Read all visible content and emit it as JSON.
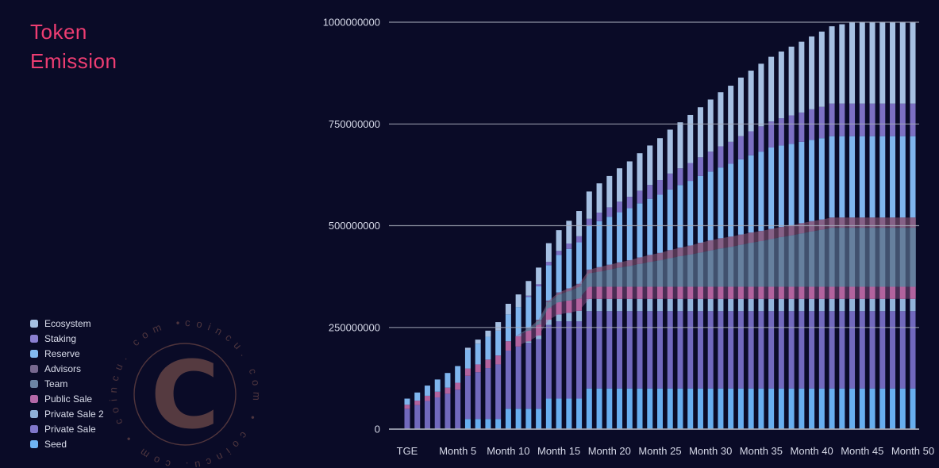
{
  "page": {
    "background_color": "#0a0b27"
  },
  "title": {
    "line1": "Token",
    "line2": "Emission",
    "color": "#ee3d72"
  },
  "watermark": {
    "center_text": "C",
    "ring_text": "coincu. com  •  coincu. com  •  coincu. com  •"
  },
  "legend": {
    "items": [
      {
        "label": "Ecosystem",
        "color": "#a6c0e2"
      },
      {
        "label": "Staking",
        "color": "#8b7fd1"
      },
      {
        "label": "Reserve",
        "color": "#82b9f0"
      },
      {
        "label": "Advisors",
        "color": "#77688f"
      },
      {
        "label": "Team",
        "color": "#6c84a4"
      },
      {
        "label": "Public Sale",
        "color": "#b468a8"
      },
      {
        "label": "Private Sale 2",
        "color": "#8fb0d8"
      },
      {
        "label": "Private Sale",
        "color": "#8177cb"
      },
      {
        "label": "Seed",
        "color": "#6fb3f2"
      }
    ]
  },
  "chart_data": {
    "type": "bar",
    "stacked": true,
    "title": "Token Emission",
    "unit": "tokens, values in millions (1 = 1,000,000 tokens)",
    "total_supply_millions": 1000,
    "x_axis": {
      "num_bars": 51,
      "months": "TGE (month 0) through Month 50, one bar per month",
      "tick_every": 5,
      "tick_labels": [
        "TGE",
        "Month 5",
        "Month 10",
        "Month 15",
        "Month 20",
        "Month 25",
        "Month 30",
        "Month 35",
        "Month 40",
        "Month 45",
        "Month 50"
      ]
    },
    "y_axis": {
      "ylim_millions": [
        0,
        1000
      ],
      "ticks": [
        {
          "label": "0",
          "value_millions": 0
        },
        {
          "label": "250000000",
          "value_millions": 250
        },
        {
          "label": "500000000",
          "value_millions": 500
        },
        {
          "label": "750000000",
          "value_millions": 750
        },
        {
          "label": "1000000000",
          "value_millions": 1000
        }
      ],
      "grid": true,
      "grid_color": "#a6aaba",
      "text_color": "#d6d9e8"
    },
    "series_note": "cumulative unlocked tokens per category, stack order bottom to top",
    "series": [
      {
        "name": "Seed",
        "total_millions": 100,
        "color": "#68aeef",
        "values_millions": [
          0,
          0,
          0,
          0,
          0,
          0,
          25,
          25,
          25,
          25,
          50,
          50,
          50,
          50,
          75,
          75,
          75,
          75,
          100,
          100,
          100,
          100,
          100,
          100,
          100,
          100,
          100,
          100,
          100,
          100,
          100,
          100,
          100,
          100,
          100,
          100,
          100,
          100,
          100,
          100,
          100,
          100,
          100,
          100,
          100,
          100,
          100,
          100,
          100,
          100,
          100
        ]
      },
      {
        "name": "Private Sale",
        "total_millions": 190,
        "color": "#7169bd",
        "values_millions": [
          50,
          59,
          69,
          78,
          87,
          97,
          106,
          115,
          125,
          134,
          143,
          153,
          162,
          171,
          181,
          190,
          190,
          190,
          190,
          190,
          190,
          190,
          190,
          190,
          190,
          190,
          190,
          190,
          190,
          190,
          190,
          190,
          190,
          190,
          190,
          190,
          190,
          190,
          190,
          190,
          190,
          190,
          190,
          190,
          190,
          190,
          190,
          190,
          190,
          190,
          190
        ]
      },
      {
        "name": "Private Sale 2",
        "total_millions": 30,
        "color": "#92b3da",
        "values_millions": [
          0,
          0,
          0,
          0,
          0,
          0,
          0,
          0,
          0,
          0,
          0,
          0,
          4,
          9,
          13,
          17,
          21,
          26,
          30,
          30,
          30,
          30,
          30,
          30,
          30,
          30,
          30,
          30,
          30,
          30,
          30,
          30,
          30,
          30,
          30,
          30,
          30,
          30,
          30,
          30,
          30,
          30,
          30,
          30,
          30,
          30,
          30,
          30,
          30,
          30,
          30
        ]
      },
      {
        "name": "Public Sale",
        "total_millions": 30,
        "color": "#b2639f",
        "values_millions": [
          10,
          11,
          13,
          14,
          15,
          17,
          18,
          19,
          21,
          22,
          23,
          25,
          26,
          27,
          29,
          30,
          30,
          30,
          30,
          30,
          30,
          30,
          30,
          30,
          30,
          30,
          30,
          30,
          30,
          30,
          30,
          30,
          30,
          30,
          30,
          30,
          30,
          30,
          30,
          30,
          30,
          30,
          30,
          30,
          30,
          30,
          30,
          30,
          30,
          30,
          30
        ]
      },
      {
        "name": "Team",
        "total_millions": 145,
        "color": "#66809f",
        "values_millions": [
          0,
          0,
          0,
          0,
          0,
          0,
          0,
          0,
          0,
          0,
          0,
          0,
          5,
          9,
          14,
          19,
          23,
          28,
          33,
          37,
          42,
          47,
          51,
          56,
          61,
          65,
          70,
          75,
          79,
          84,
          89,
          94,
          98,
          103,
          108,
          112,
          117,
          122,
          126,
          131,
          136,
          140,
          145,
          145,
          145,
          145,
          145,
          145,
          145,
          145,
          145
        ]
      },
      {
        "name": "Advisors",
        "total_millions": 25,
        "color": "#70618f",
        "values_millions": [
          0,
          0,
          0,
          0,
          0,
          0,
          0,
          0,
          0,
          0,
          0,
          0,
          1,
          3,
          4,
          5,
          7,
          8,
          9,
          11,
          12,
          13,
          14,
          16,
          17,
          18,
          20,
          21,
          22,
          24,
          25,
          25,
          25,
          25,
          25,
          25,
          25,
          25,
          25,
          25,
          25,
          25,
          25,
          25,
          25,
          25,
          25,
          25,
          25,
          25,
          25
        ]
      },
      {
        "name": "Reserve",
        "total_millions": 200,
        "color": "#7fb5ee",
        "values_millions": [
          15,
          20,
          25,
          30,
          36,
          41,
          46,
          51,
          56,
          61,
          66,
          72,
          77,
          82,
          87,
          92,
          97,
          102,
          107,
          113,
          118,
          123,
          128,
          133,
          138,
          143,
          149,
          154,
          159,
          164,
          169,
          174,
          179,
          185,
          190,
          195,
          200,
          200,
          200,
          200,
          200,
          200,
          200,
          200,
          200,
          200,
          200,
          200,
          200,
          200,
          200
        ]
      },
      {
        "name": "Staking",
        "total_millions": 80,
        "color": "#7c70c3",
        "values_millions": [
          0,
          0,
          0,
          0,
          0,
          0,
          0,
          0,
          0,
          0,
          0,
          0,
          3,
          5,
          8,
          10,
          13,
          15,
          18,
          21,
          23,
          26,
          28,
          31,
          34,
          36,
          39,
          41,
          44,
          46,
          49,
          52,
          54,
          57,
          59,
          62,
          64,
          67,
          70,
          72,
          75,
          77,
          80,
          80,
          80,
          80,
          80,
          80,
          80,
          80,
          80
        ]
      },
      {
        "name": "Ecosystem",
        "total_millions": 200,
        "color": "#a6c0e2",
        "values_millions": [
          0,
          0,
          0,
          0,
          0,
          0,
          5,
          10,
          15,
          21,
          26,
          31,
          36,
          41,
          46,
          51,
          56,
          62,
          67,
          72,
          77,
          82,
          87,
          92,
          97,
          103,
          108,
          113,
          118,
          123,
          128,
          133,
          138,
          144,
          149,
          154,
          159,
          164,
          169,
          174,
          179,
          185,
          190,
          195,
          200,
          200,
          200,
          200,
          200,
          200,
          200
        ]
      }
    ],
    "overlay_bands": [
      {
        "series": "Public Sale",
        "fill": "#b2639f",
        "opacity": 0.38,
        "from_month": 11,
        "to_month": 50
      },
      {
        "series": "Team",
        "fill": "#66809f",
        "opacity": 0.6,
        "from_month": 11,
        "to_month": 50
      },
      {
        "series": "Advisors",
        "fill": "#9c6280",
        "opacity": 0.5,
        "from_month": 11,
        "to_month": 50
      }
    ],
    "legend_position": "bottom-left"
  }
}
